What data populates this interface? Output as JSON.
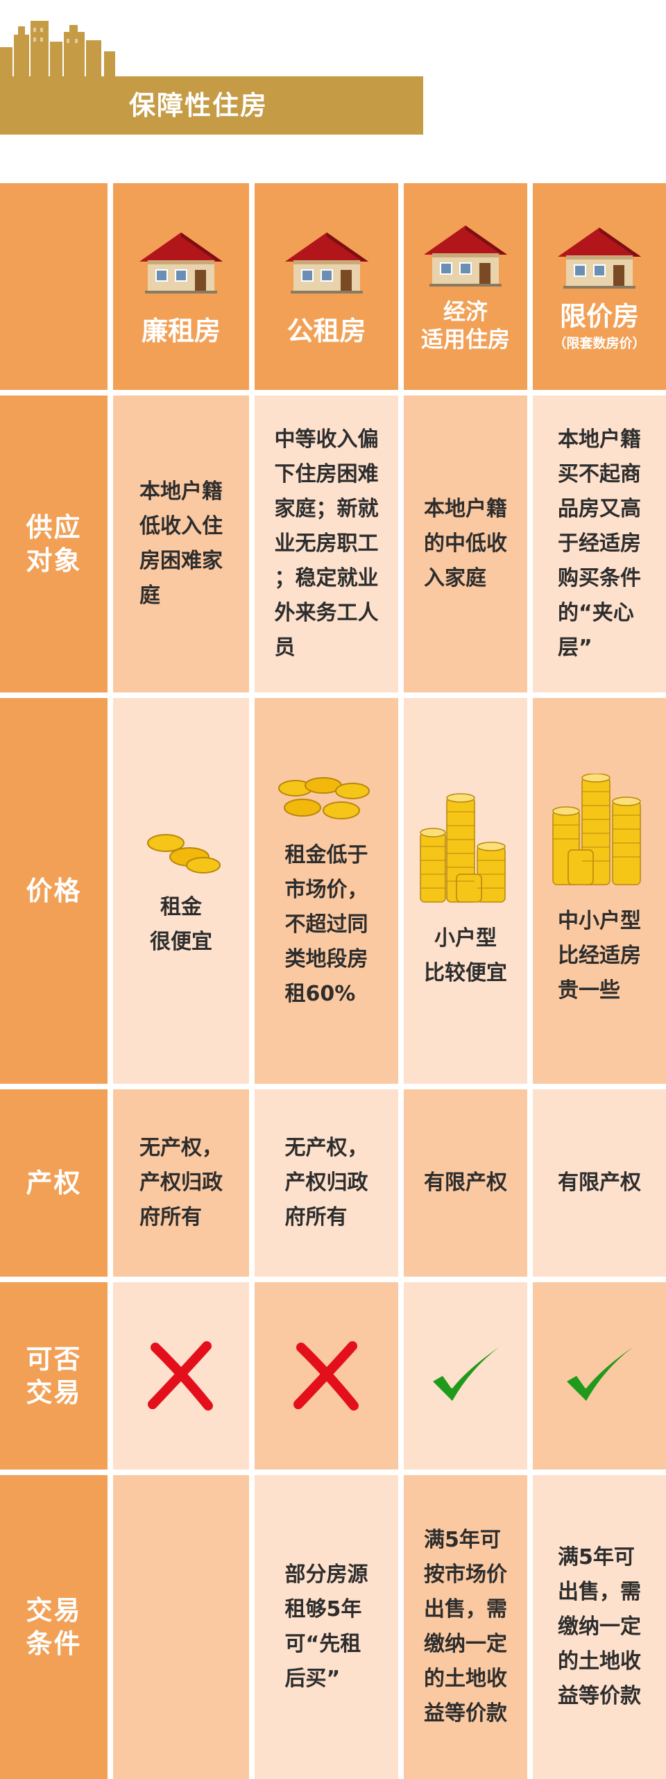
{
  "title": "保障性住房",
  "columns": [
    {
      "title": "廉租房",
      "subtitle": ""
    },
    {
      "title": "公租房",
      "subtitle": ""
    },
    {
      "title": "经济\n适用住房",
      "subtitle": ""
    },
    {
      "title": "限价房",
      "subtitle": "（限套数房价）"
    }
  ],
  "rows": {
    "supply": {
      "label": "供应\n对象",
      "values": [
        "本地户籍\n低收入住\n房困难家\n庭",
        "中等收入偏\n下住房困难\n家庭；新就\n业无房职工\n；稳定就业\n外来务工人\n员",
        "本地户籍\n的中低收\n入家庭",
        "本地户籍\n买不起商\n品房又高\n于经适房\n购买条件\n的“夹心\n层”"
      ]
    },
    "price": {
      "label": "价格",
      "values": [
        "租金\n很便宜",
        "租金低于\n市场价，\n不超过同\n类地段房\n租60%",
        "小户型\n比较便宜",
        "中小户型\n比经适房\n贵一些"
      ]
    },
    "property": {
      "label": "产权",
      "values": [
        "无产权，\n产权归政\n府所有",
        "无产权，\n产权归政\n府所有",
        "有限产权",
        "有限产权"
      ]
    },
    "tradable": {
      "label": "可否\n交易",
      "values": [
        "cross-icon",
        "cross-icon",
        "check-icon",
        "check-icon"
      ],
      "colors": {
        "cross": "#e3101c",
        "check": "#1f9a1a"
      }
    },
    "conditions": {
      "label": "交易\n条件",
      "values": [
        "",
        "部分房源\n租够5年\n可“先租\n后买”",
        "满5年可\n按市场价\n出售，需\n缴纳一定\n的土地收\n益等价款",
        "满5年可\n出售，需\n缴纳一定\n的土地收\n益等价款"
      ]
    }
  },
  "colors": {
    "accent_orange": "#f2a055",
    "cell_dark": "#fbc9a1",
    "cell_light": "#fde1cd",
    "title_bar": "#c59b45"
  }
}
